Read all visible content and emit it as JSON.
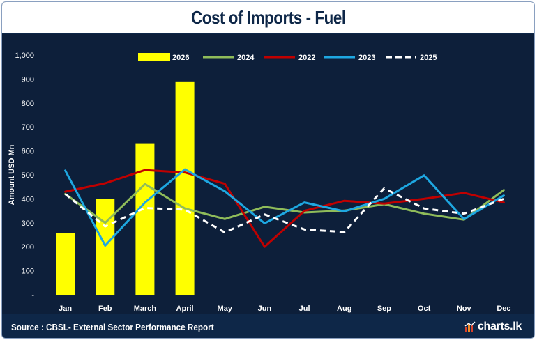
{
  "title": "Cost of Imports - Fuel",
  "source": "Source : CBSL- External Sector Performance Report",
  "brand": "charts.lk",
  "colors": {
    "background": "#0d1f3a",
    "frame": "#0e2748",
    "y2026": "#ffff00",
    "y2024": "#8fbc5a",
    "y2022": "#c00000",
    "y2023": "#1ea7e1",
    "y2025": "#ffffff",
    "text": "#ffffff"
  },
  "chart_data": {
    "type": "bar+line",
    "title": "Cost of Imports - Fuel",
    "ylabel": "Amount USD Mn",
    "xlabel": "",
    "ylim": [
      0,
      1000
    ],
    "ytick_labels": [
      "-",
      "100",
      "200",
      "300",
      "400",
      "500",
      "600",
      "700",
      "800",
      "900",
      "1,000"
    ],
    "categories": [
      "Jan",
      "Feb",
      "March",
      "April",
      "May",
      "Jun",
      "Jul",
      "Aug",
      "Sep",
      "Oct",
      "Nov",
      "Dec"
    ],
    "legend_position": "top",
    "grid": false,
    "bars": [
      {
        "name": "2026",
        "color": "#ffff00",
        "values": [
          258,
          400,
          632,
          890
        ]
      }
    ],
    "series": [
      {
        "name": "2024",
        "color": "#8fbc5a",
        "style": "solid",
        "values": [
          420,
          300,
          462,
          360,
          316,
          367,
          343,
          351,
          378,
          338,
          313,
          437
        ]
      },
      {
        "name": "2022",
        "color": "#c00000",
        "style": "solid",
        "values": [
          430,
          465,
          520,
          510,
          463,
          200,
          350,
          392,
          380,
          400,
          425,
          385
        ]
      },
      {
        "name": "2023",
        "color": "#1ea7e1",
        "style": "solid",
        "values": [
          518,
          205,
          385,
          523,
          432,
          298,
          385,
          348,
          400,
          498,
          315,
          414
        ]
      },
      {
        "name": "2025",
        "color": "#ffffff",
        "style": "dashed",
        "values": [
          420,
          285,
          362,
          355,
          260,
          335,
          272,
          262,
          444,
          360,
          338,
          400
        ]
      }
    ],
    "legend_order": [
      "2026",
      "2024",
      "2022",
      "2023",
      "2025"
    ]
  }
}
